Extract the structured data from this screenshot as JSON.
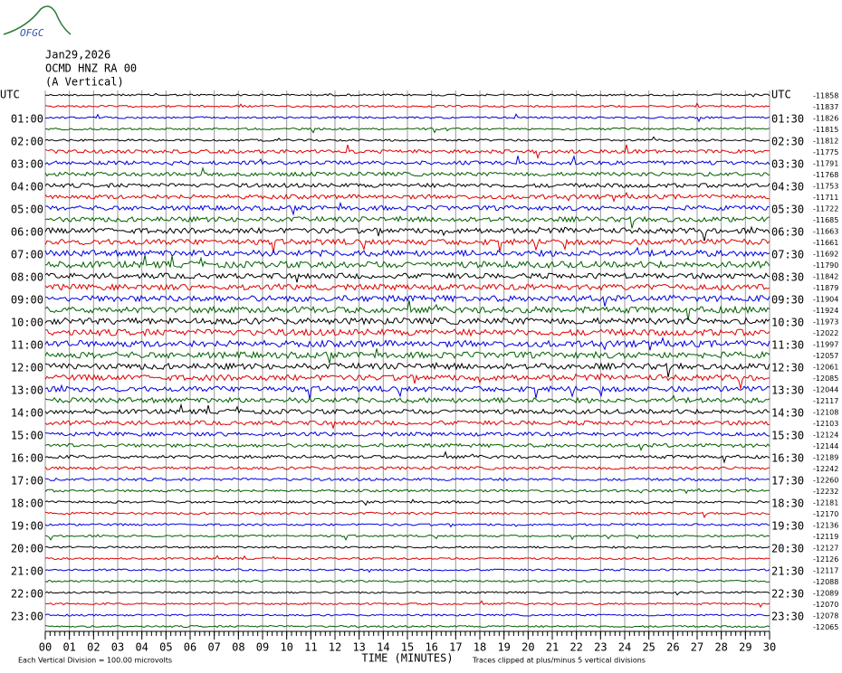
{
  "chart_data": {
    "type": "helicorder",
    "logo": "OFGC",
    "title_lines": [
      "Jan29,2026",
      "OCMD HNZ RA 00",
      "(A Vertical)"
    ],
    "left_labels": [
      "UTC",
      "01:00",
      "02:00",
      "03:00",
      "04:00",
      "05:00",
      "06:00",
      "07:00",
      "08:00",
      "09:00",
      "10:00",
      "11:00",
      "12:00",
      "13:00",
      "14:00",
      "15:00",
      "16:00",
      "17:00",
      "18:00",
      "19:00",
      "20:00",
      "21:00",
      "22:00",
      "23:00"
    ],
    "right_labels": [
      "UTC",
      "01:30",
      "02:30",
      "03:30",
      "04:30",
      "05:30",
      "06:30",
      "07:30",
      "08:30",
      "09:30",
      "10:30",
      "11:30",
      "12:30",
      "13:30",
      "14:30",
      "15:30",
      "16:30",
      "17:30",
      "18:30",
      "19:30",
      "20:30",
      "21:30",
      "22:30",
      "23:30"
    ],
    "offsets": [
      -11858,
      -11837,
      -11826,
      -11815,
      -11812,
      -11775,
      -11791,
      -11768,
      -11753,
      -11711,
      -11722,
      -11685,
      -11663,
      -11661,
      -11692,
      -11790,
      -11842,
      -11879,
      -11904,
      -11924,
      -11973,
      -12022,
      -11997,
      -12057,
      -12061,
      -12085,
      -12044,
      -12117,
      -12108,
      -12103,
      -12124,
      -12144,
      -12189,
      -12242,
      -12260,
      -12232,
      -12181,
      -12170,
      -12136,
      -12119,
      -12127,
      -12126,
      -12117,
      -12088,
      -12089,
      -12070,
      -12078,
      -12065
    ],
    "colors": [
      "#000000",
      "#e00000",
      "#0000e0",
      "#006000"
    ],
    "xlim": [
      0,
      30
    ],
    "xticks": [
      {
        "value": 0,
        "label": "00"
      },
      {
        "value": 1,
        "label": "01"
      },
      {
        "value": 2,
        "label": "02"
      },
      {
        "value": 3,
        "label": "03"
      },
      {
        "value": 4,
        "label": "04"
      },
      {
        "value": 5,
        "label": "05"
      },
      {
        "value": 6,
        "label": "06"
      },
      {
        "value": 7,
        "label": "07"
      },
      {
        "value": 8,
        "label": "08"
      },
      {
        "value": 9,
        "label": "09"
      },
      10,
      11,
      12,
      13,
      14,
      15,
      16,
      17,
      18,
      19,
      20,
      21,
      22,
      23,
      24,
      25,
      26,
      27,
      28,
      29,
      30
    ],
    "x_label": "TIME (MINUTES)",
    "scale_note": "Each Vertical Division =  100.00 microvolts",
    "clip_note": "Traces clipped at plus/minus 5 vertical divisions",
    "grid": true
  }
}
